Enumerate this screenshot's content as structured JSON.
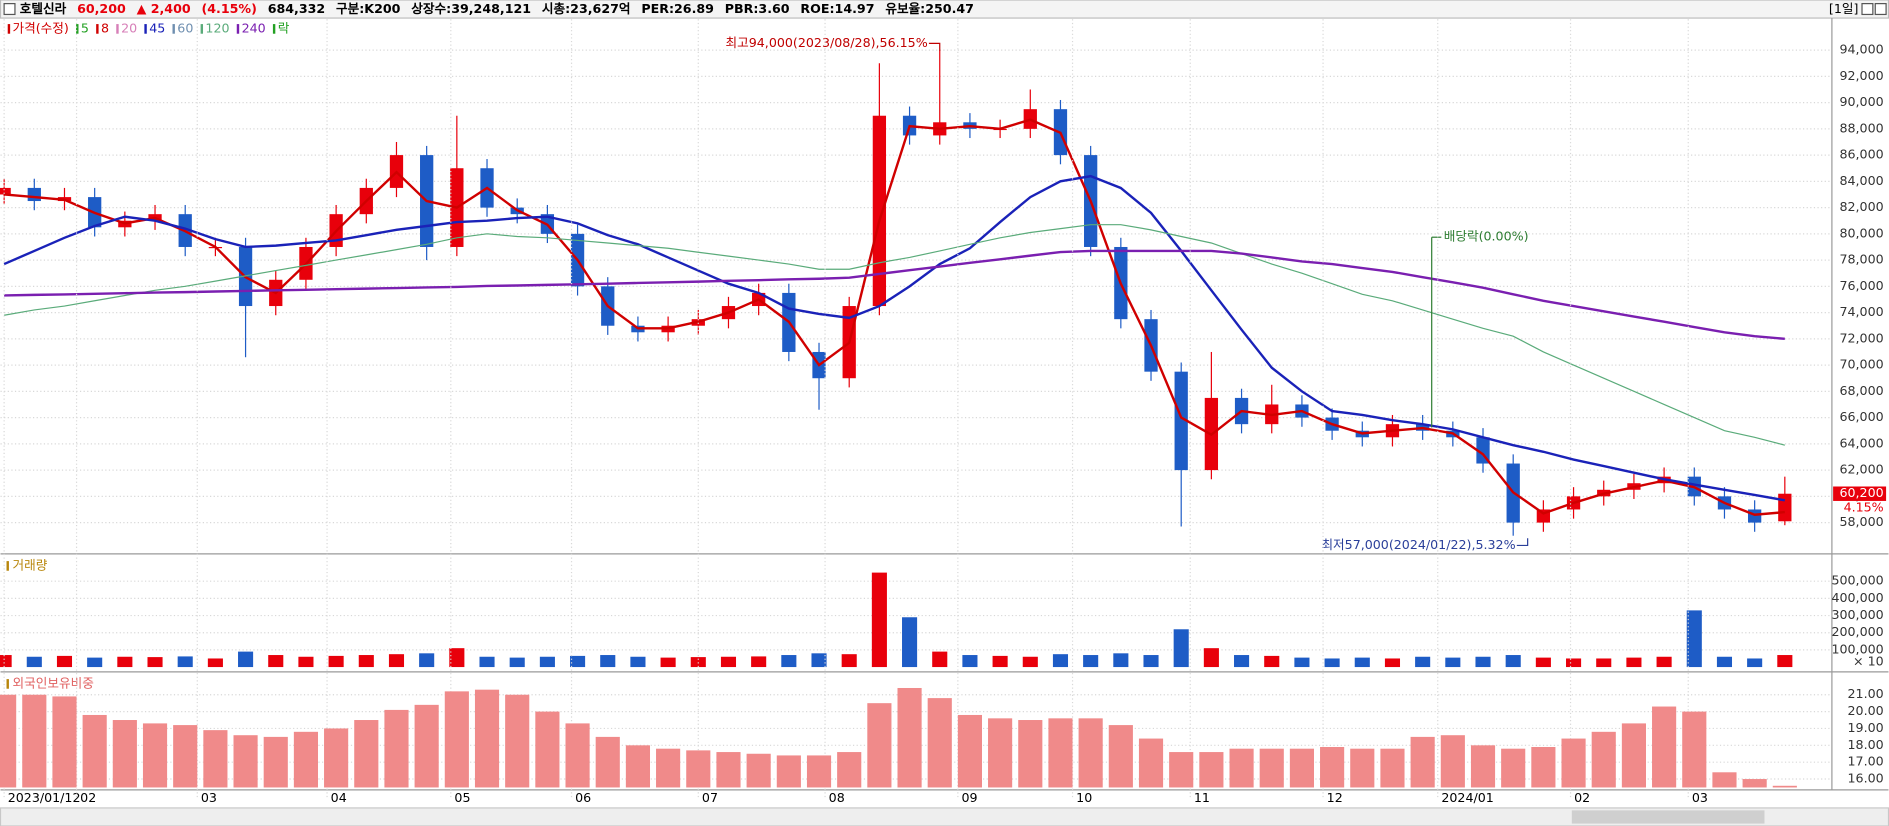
{
  "header": {
    "name": "호텔신라",
    "price": "60,200",
    "change": "▲ 2,400",
    "change_pct": "(4.15%)",
    "volume": "684,332",
    "info": [
      "구분:K200",
      "상장수:39,248,121",
      "시총:23,627억",
      "PER:26.89",
      "PBR:3.60",
      "ROE:14.97",
      "유보율:250.47"
    ],
    "period": "[1일]"
  },
  "chart_data": [
    {
      "type": "candlestick",
      "up_color": "#e8000b",
      "down_color": "#1e5cc6",
      "xlim": [
        -0.12,
        60.52
      ],
      "ylim": [
        55800,
        96350
      ],
      "yticks": [
        {
          "value": 58000,
          "label": "58,000"
        },
        {
          "value": 60000,
          "label": "60,000"
        },
        {
          "value": 62000,
          "label": "62,000"
        },
        {
          "value": 64000,
          "label": "64,000"
        },
        {
          "value": 66000,
          "label": "66,000"
        },
        {
          "value": 68000,
          "label": "68,000"
        },
        {
          "value": 70000,
          "label": "70,000"
        },
        {
          "value": 72000,
          "label": "72,000"
        },
        {
          "value": 74000,
          "label": "74,000"
        },
        {
          "value": 76000,
          "label": "76,000"
        },
        {
          "value": 78000,
          "label": "78,000"
        },
        {
          "value": 80000,
          "label": "80,000"
        },
        {
          "value": 82000,
          "label": "82,000"
        },
        {
          "value": 84000,
          "label": "84,000"
        },
        {
          "value": 86000,
          "label": "86,000"
        },
        {
          "value": 88000,
          "label": "88,000"
        },
        {
          "value": 90000,
          "label": "90,000"
        },
        {
          "value": 92000,
          "label": "92,000"
        },
        {
          "value": 94000,
          "label": "94,000"
        }
      ],
      "grid": true,
      "open": [
        83000,
        83500,
        82500,
        82800,
        80500,
        81000,
        81500,
        79000,
        79000,
        74500,
        76500,
        79000,
        81500,
        83500,
        86000,
        79000,
        85000,
        82000,
        81500,
        80000,
        76000,
        73000,
        72500,
        73000,
        73500,
        74500,
        75500,
        71000,
        69000,
        74500,
        89000,
        87500,
        88500,
        88000,
        88000,
        89500,
        86000,
        79000,
        73500,
        69500,
        62000,
        67500,
        65500,
        67000,
        66000,
        65000,
        64500,
        65500,
        65000,
        64500,
        62500,
        58000,
        59000,
        60000,
        60500,
        61000,
        61500,
        60000,
        59000,
        58100
      ],
      "high": [
        84200,
        84200,
        83500,
        83500,
        81700,
        82200,
        82200,
        79700,
        79700,
        77200,
        79700,
        82200,
        84200,
        87000,
        86700,
        89000,
        85700,
        82700,
        82200,
        80700,
        76700,
        73700,
        73700,
        74200,
        75200,
        76200,
        76200,
        71700,
        75200,
        93000,
        89700,
        94000,
        89200,
        88700,
        91000,
        90200,
        86700,
        79700,
        74200,
        70200,
        71000,
        68200,
        68500,
        67700,
        66700,
        65700,
        66200,
        66200,
        65700,
        65200,
        63200,
        59700,
        60700,
        61200,
        61700,
        62200,
        62200,
        60700,
        59700,
        61500
      ],
      "low": [
        82300,
        81800,
        81800,
        79800,
        79800,
        80300,
        78300,
        78300,
        70600,
        73800,
        75800,
        78300,
        80800,
        82800,
        78000,
        78300,
        81300,
        80800,
        79300,
        75300,
        72300,
        71800,
        71800,
        72300,
        72800,
        73800,
        70300,
        66600,
        68300,
        73800,
        86800,
        86800,
        87300,
        87300,
        87300,
        85300,
        78300,
        72800,
        68800,
        57700,
        61300,
        64800,
        64800,
        65300,
        64300,
        63800,
        63800,
        64300,
        63800,
        61800,
        57000,
        57300,
        58300,
        59300,
        59800,
        60300,
        59300,
        58300,
        57300,
        57800
      ],
      "close": [
        83500,
        82500,
        82800,
        80500,
        81000,
        81500,
        79000,
        79000,
        74500,
        76500,
        79000,
        81500,
        83500,
        86000,
        79000,
        85000,
        82000,
        81500,
        80000,
        76000,
        73000,
        72500,
        73000,
        73500,
        74500,
        75500,
        71000,
        69000,
        74500,
        89000,
        87500,
        88500,
        88000,
        88000,
        89500,
        86000,
        79000,
        73500,
        69500,
        62000,
        67500,
        65500,
        67000,
        66000,
        65000,
        64500,
        65500,
        65000,
        64500,
        62500,
        58000,
        59000,
        60000,
        60500,
        61000,
        61500,
        60000,
        59000,
        58000,
        60200
      ],
      "series": [
        {
          "name": "가격(수정)",
          "color": "#d00000"
        },
        {
          "name": "5",
          "color": "#22a022"
        },
        {
          "name": "8",
          "color": "#d00000",
          "line_width": 2,
          "values": [
            83000,
            82800,
            82600,
            81600,
            80800,
            81200,
            80200,
            79000,
            76700,
            75500,
            77700,
            80200,
            82500,
            84700,
            82500,
            82000,
            83500,
            81800,
            80700,
            78000,
            74500,
            72800,
            72800,
            73300,
            74000,
            75000,
            73300,
            70000,
            71700,
            81000,
            88200,
            88000,
            88200,
            88000,
            88700,
            87700,
            82500,
            76200,
            71500,
            66000,
            64700,
            66500,
            66200,
            66500,
            65500,
            64800,
            65000,
            65200,
            64800,
            63200,
            60300,
            58700,
            59500,
            60200,
            60700,
            61200,
            60700,
            59500,
            58600,
            58800
          ]
        },
        {
          "name": "20",
          "color": "#d77fb8"
        },
        {
          "name": "45",
          "color": "#1a22b8",
          "line_width": 2,
          "values": [
            77700,
            78700,
            79700,
            80600,
            81300,
            81000,
            80400,
            79600,
            79000,
            79100,
            79300,
            79500,
            79900,
            80300,
            80600,
            80900,
            81000,
            81200,
            81300,
            80800,
            79900,
            79200,
            78200,
            77200,
            76200,
            75500,
            74300,
            73900,
            73600,
            74500,
            76000,
            77700,
            78900,
            80900,
            82800,
            84000,
            84400,
            83500,
            81600,
            78700,
            75700,
            72700,
            69800,
            68000,
            66500,
            66200,
            65800,
            65500,
            65100,
            64500,
            63900,
            63400,
            62800,
            62300,
            61800,
            61300,
            60900,
            60500,
            60100,
            59700
          ]
        },
        {
          "name": "60",
          "color": "#6f8fb0"
        },
        {
          "name": "120",
          "color": "#5aab7a",
          "line_width": 1,
          "values": [
            73800,
            74200,
            74500,
            74900,
            75300,
            75700,
            76000,
            76400,
            76800,
            77200,
            77600,
            78000,
            78400,
            78800,
            79200,
            79700,
            80000,
            79800,
            79700,
            79500,
            79300,
            79100,
            78900,
            78600,
            78300,
            78000,
            77700,
            77300,
            77300,
            77800,
            78200,
            78700,
            79200,
            79700,
            80100,
            80400,
            80700,
            80700,
            80300,
            79800,
            79300,
            78500,
            77700,
            77000,
            76200,
            75400,
            74900,
            74200,
            73500,
            72800,
            72200,
            71000,
            70000,
            69000,
            68000,
            67000,
            66000,
            65000,
            64500,
            63900
          ]
        },
        {
          "name": "240",
          "color": "#7a1fb0",
          "line_width": 2,
          "values": [
            75300,
            75350,
            75390,
            75430,
            75480,
            75520,
            75560,
            75610,
            75650,
            75700,
            75740,
            75780,
            75830,
            75870,
            75920,
            75960,
            76030,
            76070,
            76110,
            76160,
            76200,
            76260,
            76300,
            76360,
            76420,
            76470,
            76530,
            76580,
            76660,
            76950,
            77230,
            77510,
            77790,
            78060,
            78340,
            78620,
            78700,
            78700,
            78700,
            78700,
            78700,
            78500,
            78200,
            77900,
            77700,
            77400,
            77100,
            76700,
            76300,
            75900,
            75400,
            74900,
            74500,
            74100,
            73700,
            73300,
            72900,
            72500,
            72200,
            72000
          ]
        },
        {
          "name": "락",
          "color": "#22a022"
        }
      ],
      "annotations": [
        {
          "text": "최고94,000(2023/08/28),56.15%",
          "color": "#c00000"
        },
        {
          "text": "최저57,000(2024/01/22),5.32%",
          "color": "#2a3f9a"
        },
        {
          "text": "배당락(0.00%)",
          "color": "#2e7d32"
        }
      ],
      "last_price_label": "60,200",
      "last_change_label": "4.15%"
    },
    {
      "type": "bar",
      "title": "거래량",
      "xlim": [
        -0.12,
        60.52
      ],
      "ylim": [
        0,
        631000
      ],
      "unit_label": "× 10",
      "yticks": [
        {
          "value": 100000,
          "label": "100,000"
        },
        {
          "value": 200000,
          "label": "200,000"
        },
        {
          "value": 300000,
          "label": "300,000"
        },
        {
          "value": 400000,
          "label": "400,000"
        },
        {
          "value": 500000,
          "label": "500,000"
        }
      ],
      "values": [
        70000,
        60000,
        65000,
        55000,
        60000,
        58000,
        62000,
        50000,
        90000,
        70000,
        60000,
        65000,
        70000,
        75000,
        80000,
        110000,
        60000,
        55000,
        60000,
        65000,
        70000,
        60000,
        55000,
        58000,
        60000,
        62000,
        70000,
        80000,
        75000,
        550000,
        290000,
        90000,
        70000,
        65000,
        60000,
        75000,
        70000,
        80000,
        70000,
        220000,
        110000,
        70000,
        65000,
        55000,
        50000,
        55000,
        50000,
        60000,
        55000,
        60000,
        70000,
        55000,
        50000,
        50000,
        55000,
        60000,
        330000,
        60000,
        50000,
        70000
      ]
    },
    {
      "type": "bar",
      "title": "외국인보유비중",
      "color": "#f08a8a",
      "xlim": [
        -0.12,
        60.52
      ],
      "ylim": [
        15.5,
        22.07
      ],
      "yticks": [
        {
          "value": 16,
          "label": "16.00"
        },
        {
          "value": 17,
          "label": "17.00"
        },
        {
          "value": 18,
          "label": "18.00"
        },
        {
          "value": 19,
          "label": "19.00"
        },
        {
          "value": 20,
          "label": "20.00"
        },
        {
          "value": 21,
          "label": "21.00"
        }
      ],
      "values": [
        21.0,
        21.0,
        20.9,
        19.8,
        19.5,
        19.3,
        19.2,
        18.9,
        18.6,
        18.5,
        18.8,
        19.0,
        19.5,
        20.1,
        20.4,
        21.2,
        21.3,
        21.0,
        20.0,
        19.3,
        18.5,
        18.0,
        17.8,
        17.7,
        17.6,
        17.5,
        17.4,
        17.4,
        17.6,
        20.5,
        21.4,
        20.8,
        19.8,
        19.6,
        19.5,
        19.6,
        19.6,
        19.2,
        18.4,
        17.6,
        17.6,
        17.8,
        17.8,
        17.8,
        17.9,
        17.8,
        17.8,
        18.5,
        18.6,
        18.0,
        17.8,
        17.9,
        18.4,
        18.8,
        19.3,
        20.3,
        20.0,
        16.4,
        16.0,
        15.6
      ],
      "xticks": [
        {
          "value": 0,
          "label": "2023/01/12"
        },
        {
          "value": 2.4,
          "label": "02"
        },
        {
          "value": 6.4,
          "label": "03"
        },
        {
          "value": 10.7,
          "label": "04"
        },
        {
          "value": 14.8,
          "label": "05"
        },
        {
          "value": 18.8,
          "label": "06"
        },
        {
          "value": 23,
          "label": "07"
        },
        {
          "value": 27.2,
          "label": "08"
        },
        {
          "value": 31.6,
          "label": "09"
        },
        {
          "value": 35.4,
          "label": "10"
        },
        {
          "value": 39.3,
          "label": "11"
        },
        {
          "value": 43.7,
          "label": "12"
        },
        {
          "value": 47.5,
          "label": "2024/01"
        },
        {
          "value": 51.9,
          "label": "02"
        },
        {
          "value": 55.8,
          "label": "03"
        }
      ]
    }
  ]
}
